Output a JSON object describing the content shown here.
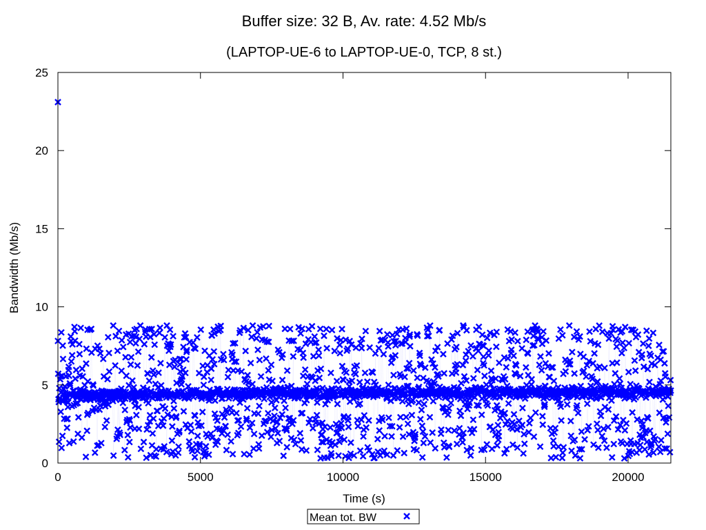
{
  "chart_data": {
    "type": "scatter",
    "title": "Buffer size: 32 B, Av. rate: 4.52 Mb/s",
    "subtitle": "(LAPTOP-UE-6 to LAPTOP-UE-0, TCP, 8 st.)",
    "xlabel": "Time (s)",
    "ylabel": "Bandwidth (Mb/s)",
    "xlim": [
      0,
      21500
    ],
    "ylim": [
      0,
      25
    ],
    "x_ticks": [
      0,
      5000,
      10000,
      15000,
      20000
    ],
    "y_ticks": [
      0,
      5,
      10,
      15,
      20,
      25
    ],
    "grid": false,
    "legend_position": "bottom-center",
    "series": [
      {
        "name": "Mean tot. BW",
        "color": "#0000ff",
        "marker": "cross",
        "x_start": 0,
        "x_end": 21500,
        "point_count": 2150,
        "y_range": [
          0.3,
          8.8
        ],
        "dense_band_center": 4.5,
        "mean": 4.52,
        "outliers": [
          {
            "x": 0,
            "y": 23.1
          }
        ]
      }
    ]
  }
}
